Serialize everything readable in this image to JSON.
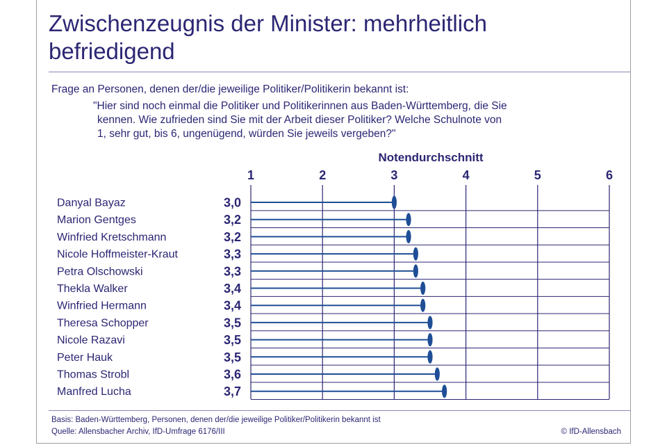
{
  "title": "Zwischenzeugnis der Minister: mehrheitlich befriedigend",
  "question": {
    "intro": "Frage an Personen, denen der/die jeweilige Politiker/Politikerin bekannt ist:",
    "lines": [
      "\"Hier sind noch einmal die Politiker und Politikerinnen aus Baden-Württemberg, die Sie",
      "kennen. Wie zufrieden sind Sie mit der Arbeit dieser Politiker? Welche Schulnote von",
      "1, sehr gut, bis 6, ungenügend, würden Sie jeweils vergeben?\""
    ]
  },
  "chart_data": {
    "type": "bar",
    "title": "Notendurchschnitt",
    "xlim": [
      1,
      6
    ],
    "ticks": [
      1,
      2,
      3,
      4,
      5,
      6
    ],
    "tick_labels": [
      "1",
      "2",
      "3",
      "4",
      "5",
      "6"
    ],
    "grid": true,
    "categories": [
      "Danyal Bayaz",
      "Marion Gentges",
      "Winfried Kretschmann",
      "Nicole Hoffmeister-Kraut",
      "Petra Olschowski",
      "Thekla Walker",
      "Winfried Hermann",
      "Theresa Schopper",
      "Nicole Razavi",
      "Peter Hauk",
      "Thomas Strobl",
      "Manfred Lucha"
    ],
    "values": [
      3.0,
      3.2,
      3.2,
      3.3,
      3.3,
      3.4,
      3.4,
      3.5,
      3.5,
      3.5,
      3.6,
      3.7
    ],
    "value_labels": [
      "3,0",
      "3,2",
      "3,2",
      "3,3",
      "3,3",
      "3,4",
      "3,4",
      "3,5",
      "3,5",
      "3,5",
      "3,6",
      "3,7"
    ]
  },
  "colors": {
    "text": "#2b2673",
    "bar": "#1f4e96",
    "grid": "#2b2673"
  },
  "footer": {
    "basis": "Basis: Baden-Württemberg, Personen, denen der/die jeweilige Politiker/Politikerin bekannt ist",
    "source": "Quelle: Allensbacher Archiv, IfD-Umfrage 6176/III",
    "copyright": "© IfD-Allensbach"
  }
}
